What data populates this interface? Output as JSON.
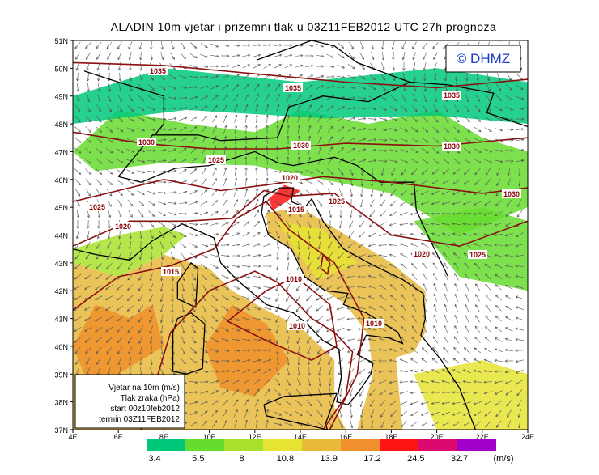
{
  "title": "ALADIN  10m  vjetar  i  prizemni  tlak  u  03Z11FEB2012  UTC  27h  prognoza",
  "watermark": "© DHMZ",
  "lat_labels": [
    "51N",
    "50N",
    "49N",
    "48N",
    "47N",
    "46N",
    "45N",
    "44N",
    "43N",
    "42N",
    "41N",
    "40N",
    "39N",
    "38N",
    "37N"
  ],
  "lon_labels": [
    "4E",
    "6E",
    "8E",
    "10E",
    "12E",
    "14E",
    "16E",
    "18E",
    "20E",
    "22E",
    "24E"
  ],
  "isobar_labels": [
    "1035",
    "1035",
    "1035",
    "1030",
    "1030",
    "1030",
    "1030",
    "1025",
    "1025",
    "1025",
    "1025",
    "1020",
    "1020",
    "1020",
    "1015",
    "1015",
    "1010",
    "1010",
    "1010"
  ],
  "info_box": [
    "Vjetar na 10m (m/s)",
    "Tlak zraka (hPa)",
    "start 00z10feb2012",
    "termin 03Z11FEB2012"
  ],
  "colorbar": {
    "labels": [
      3.4,
      5.5,
      8,
      10.8,
      13.9,
      17.2,
      24.5,
      32.7
    ],
    "units": "(m/s)",
    "colors": [
      "#00c87a",
      "#66dc2e",
      "#a8e22c",
      "#e6e432",
      "#e8ba3c",
      "#f0902c",
      "#ff1414",
      "#dc0a6e",
      "#a000c8"
    ]
  }
}
